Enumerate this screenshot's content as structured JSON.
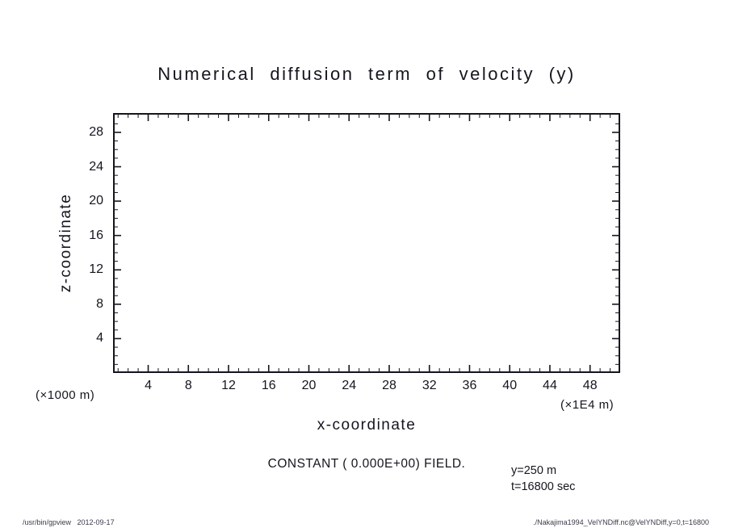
{
  "colors": {
    "ink": "#15151f",
    "background": "#ffffff",
    "footer_text": "#3a3a4a"
  },
  "chart_data": {
    "type": "line",
    "title": "Numerical diffusion term of velocity (y)",
    "xlabel": "x-coordinate",
    "ylabel": "z-coordinate",
    "xlim": [
      0.5,
      51
    ],
    "ylim": [
      0,
      30.25
    ],
    "x_ticks": [
      4,
      8,
      12,
      16,
      20,
      24,
      28,
      32,
      36,
      40,
      44,
      48
    ],
    "y_ticks": [
      4,
      8,
      12,
      16,
      20,
      24,
      28
    ],
    "x_factor_label": "(×1E4 m)",
    "y_factor_label": "(×1000 m)",
    "grid": false,
    "legend": "none",
    "series": [],
    "field_note": "CONSTANT ( 0.000E+00) FIELD.",
    "annotations": {
      "slice": "y=250 m",
      "time": "t=16800 sec"
    }
  },
  "footer": {
    "command": "/usr/bin/gpview   2012-09-17",
    "source": "./Nakajima1994_VelYNDiff.nc@VelYNDiff,y=0,t=16800"
  }
}
